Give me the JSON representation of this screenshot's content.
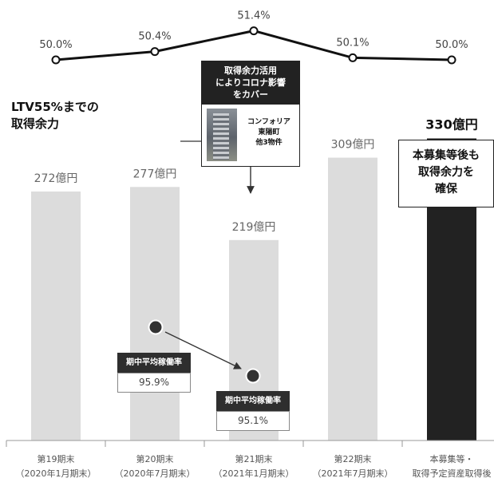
{
  "chart_data": {
    "type": "bar",
    "categories": [
      [
        "第19期末",
        "（2020年1月期末）"
      ],
      [
        "第20期末",
        "（2020年7月期末）"
      ],
      [
        "第21期末",
        "（2021年1月期末）"
      ],
      [
        "第22期末",
        "（2021年7月期末）"
      ],
      [
        "本募集等・",
        "取得予定資産取得後"
      ]
    ],
    "bar_values": [
      272,
      277,
      219,
      309,
      330
    ],
    "bar_labels": [
      "272億円",
      "277億円",
      "219億円",
      "309億円",
      "330億円"
    ],
    "bar_colors": [
      "#dcdcdc",
      "#dcdcdc",
      "#dcdcdc",
      "#dcdcdc",
      "#222222"
    ],
    "bar_ylim": [
      0,
      340
    ],
    "ltv_values": [
      50.0,
      50.4,
      51.4,
      50.1,
      50.0
    ],
    "ltv_labels": [
      "50.0%",
      "50.4%",
      "51.4%",
      "50.1%",
      "50.0%"
    ],
    "ltv_ylim": [
      49.5,
      51.5
    ]
  },
  "ltv_capacity_title": "LTV55%までの\n取得余力",
  "covid_callout": {
    "heading": "取得余力活用\nによりコロナ影響\nをカバー",
    "property": "コンフォリア\n東陽町\n他3物件"
  },
  "after_offering_note": "本募集等後も\n取得余力を\n確保",
  "occupancy": [
    {
      "label": "期中平均稼働率",
      "value": "95.9%"
    },
    {
      "label": "期中平均稼働率",
      "value": "95.1%"
    }
  ],
  "colors": {
    "bar": "#dcdcdc",
    "highlight_bar": "#222222",
    "line": "#111111",
    "label_dark": "#2e2e2e"
  }
}
